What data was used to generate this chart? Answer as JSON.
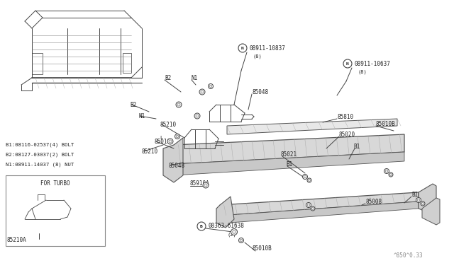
{
  "bg_color": "#ffffff",
  "line_color": "#555555",
  "fig_width": 6.4,
  "fig_height": 3.72,
  "dpi": 100,
  "watermark": "^850^0.33",
  "legend_items": [
    "B1:08116-02537(4) BOLT",
    "B2:08127-03037(2) BOLT",
    "N1:08911-14037 (8) NUT"
  ]
}
